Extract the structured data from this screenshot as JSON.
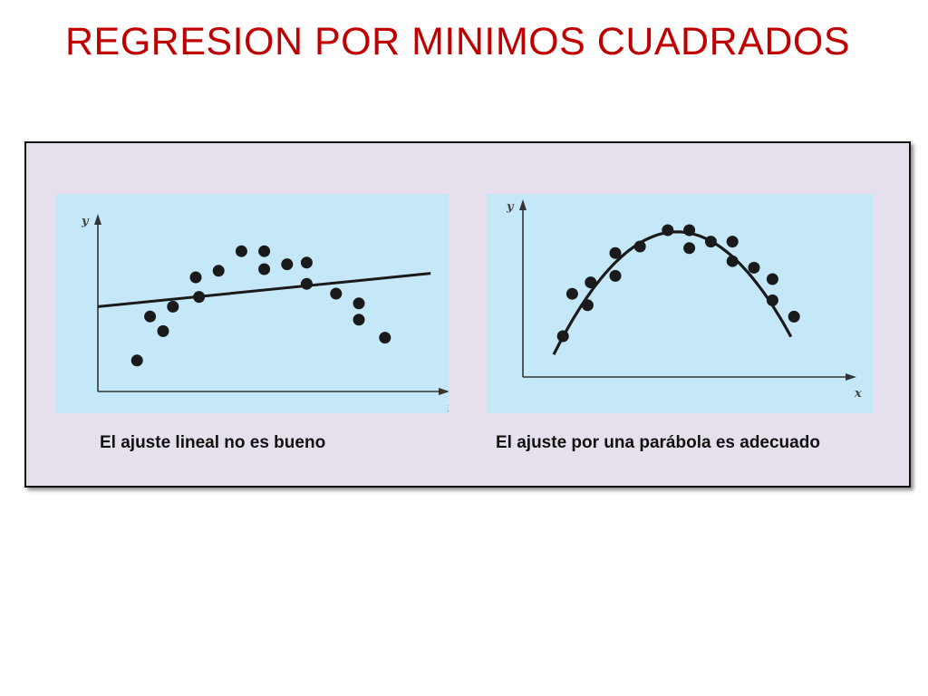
{
  "title": "REGRESION POR MINIMOS CUADRADOS",
  "colors": {
    "title": "#c00000",
    "panel": "#e6e0ec",
    "plot_bg": "#c5e8f9",
    "marks": "#1a1a1a"
  },
  "chart_data": [
    {
      "type": "scatter",
      "xlabel": "x",
      "ylabel": "y",
      "xlim": [
        0,
        10
      ],
      "ylim": [
        0,
        10
      ],
      "caption": "El ajuste lineal no es bueno",
      "fit": {
        "kind": "linear",
        "intercept": 5.2,
        "slope": 0.2
      },
      "points": [
        {
          "x": 1.2,
          "y": 1.9
        },
        {
          "x": 1.6,
          "y": 4.6
        },
        {
          "x": 2.0,
          "y": 3.7
        },
        {
          "x": 2.3,
          "y": 5.2
        },
        {
          "x": 3.0,
          "y": 7.0
        },
        {
          "x": 3.1,
          "y": 5.8
        },
        {
          "x": 3.7,
          "y": 7.4
        },
        {
          "x": 4.4,
          "y": 8.6
        },
        {
          "x": 5.1,
          "y": 8.6
        },
        {
          "x": 5.1,
          "y": 7.5
        },
        {
          "x": 5.8,
          "y": 7.8
        },
        {
          "x": 6.4,
          "y": 7.9
        },
        {
          "x": 6.4,
          "y": 6.6
        },
        {
          "x": 7.3,
          "y": 6.0
        },
        {
          "x": 8.0,
          "y": 5.4
        },
        {
          "x": 8.0,
          "y": 4.4
        },
        {
          "x": 8.8,
          "y": 3.3
        }
      ]
    },
    {
      "type": "scatter",
      "xlabel": "x",
      "ylabel": "y",
      "xlim": [
        0,
        10
      ],
      "ylim": [
        0,
        10
      ],
      "caption": "El ajuste por una parábola es adecuado",
      "fit": {
        "kind": "quadratic",
        "vertex_x": 5.0,
        "vertex_y": 8.9,
        "a": -0.47
      },
      "points": [
        {
          "x": 1.3,
          "y": 2.5
        },
        {
          "x": 1.6,
          "y": 5.1
        },
        {
          "x": 2.1,
          "y": 4.4
        },
        {
          "x": 2.2,
          "y": 5.8
        },
        {
          "x": 3.0,
          "y": 6.2
        },
        {
          "x": 3.0,
          "y": 7.6
        },
        {
          "x": 3.8,
          "y": 8.0
        },
        {
          "x": 4.7,
          "y": 9.0
        },
        {
          "x": 5.4,
          "y": 9.0
        },
        {
          "x": 5.4,
          "y": 7.9
        },
        {
          "x": 6.1,
          "y": 8.3
        },
        {
          "x": 6.8,
          "y": 8.3
        },
        {
          "x": 6.8,
          "y": 7.1
        },
        {
          "x": 7.5,
          "y": 6.7
        },
        {
          "x": 8.1,
          "y": 6.0
        },
        {
          "x": 8.1,
          "y": 4.7
        },
        {
          "x": 8.8,
          "y": 3.7
        }
      ]
    }
  ]
}
